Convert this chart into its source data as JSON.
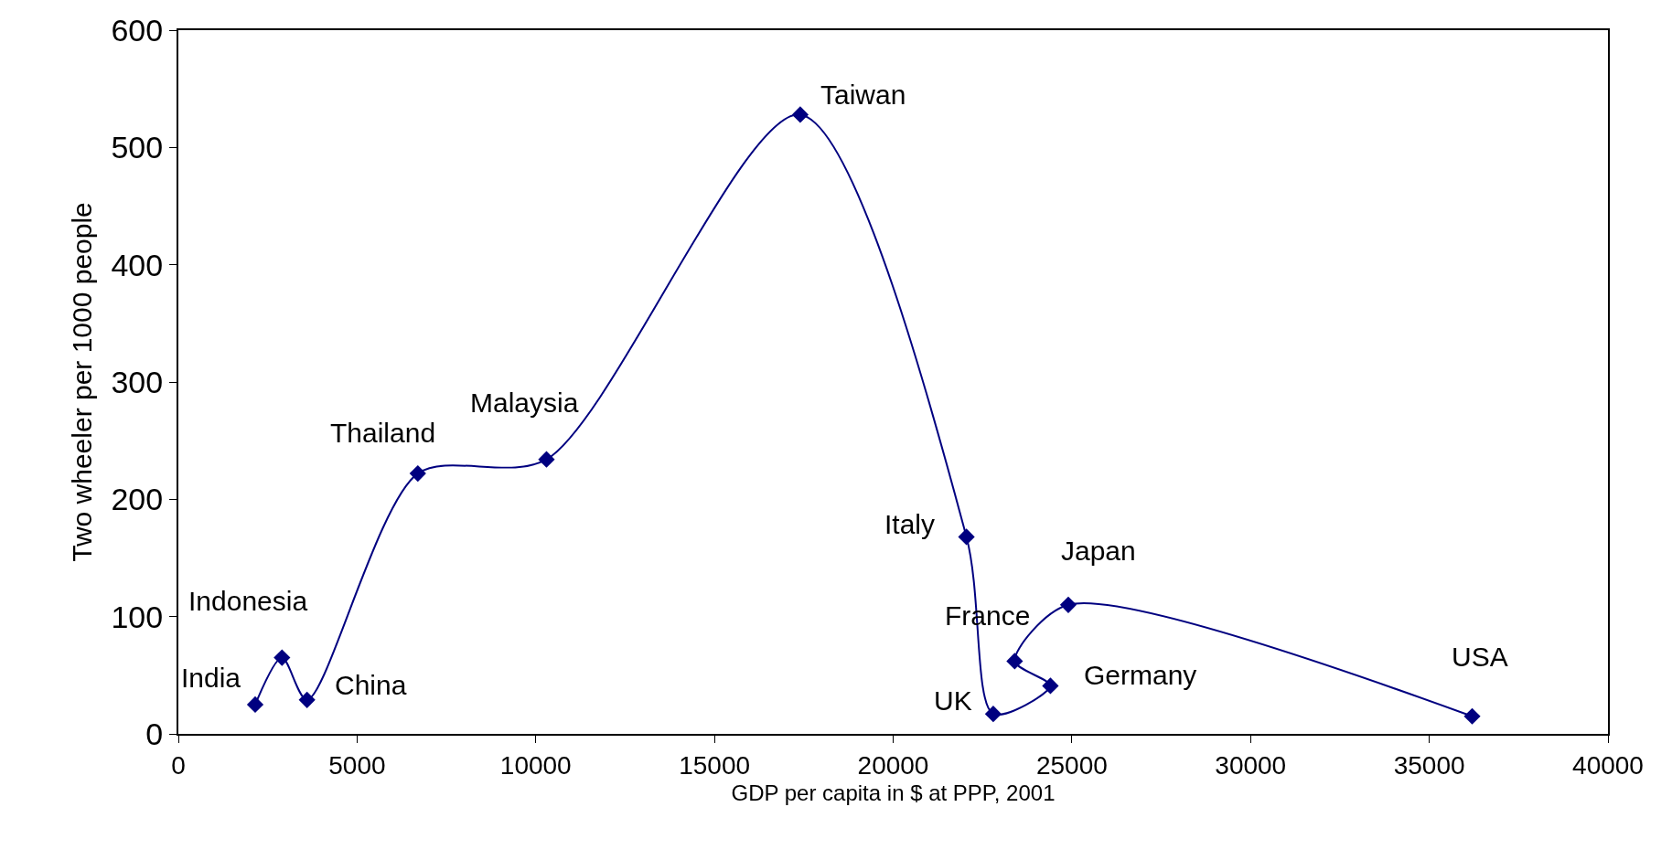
{
  "chart_data": {
    "type": "line",
    "xlabel": "GDP per capita in $ at PPP, 2001",
    "ylabel": "Two wheeler per 1000 people",
    "series": [
      {
        "color": "#000080",
        "x": [
          2150,
          2900,
          3600,
          6700,
          10300,
          17400,
          22050,
          22800,
          24400,
          23400,
          24900,
          36200
        ],
        "values": [
          25,
          65,
          29,
          222,
          234,
          528,
          168,
          17,
          41,
          62,
          110,
          15
        ]
      }
    ],
    "annotations": [
      {
        "text": "India",
        "x": 2150,
        "y": 25
      },
      {
        "text": "Indonesia",
        "x": 2900,
        "y": 65
      },
      {
        "text": "China",
        "x": 3600,
        "y": 29
      },
      {
        "text": "Thailand",
        "x": 6700,
        "y": 222
      },
      {
        "text": "Malaysia",
        "x": 10300,
        "y": 234
      },
      {
        "text": "Taiwan",
        "x": 17400,
        "y": 528
      },
      {
        "text": "Italy",
        "x": 22050,
        "y": 168
      },
      {
        "text": "UK",
        "x": 22800,
        "y": 17
      },
      {
        "text": "Germany",
        "x": 24400,
        "y": 41
      },
      {
        "text": "France",
        "x": 23400,
        "y": 62
      },
      {
        "text": "Japan",
        "x": 24900,
        "y": 110
      },
      {
        "text": "USA",
        "x": 36200,
        "y": 15
      }
    ],
    "xlim": [
      0,
      40000
    ],
    "xticks": [
      0,
      5000,
      10000,
      15000,
      20000,
      25000,
      30000,
      35000,
      40000
    ],
    "ylim": [
      0,
      600
    ],
    "yticks": [
      0,
      100,
      200,
      300,
      400,
      500,
      600
    ],
    "legend": false,
    "marker": "diamond",
    "line_style": "solid"
  }
}
